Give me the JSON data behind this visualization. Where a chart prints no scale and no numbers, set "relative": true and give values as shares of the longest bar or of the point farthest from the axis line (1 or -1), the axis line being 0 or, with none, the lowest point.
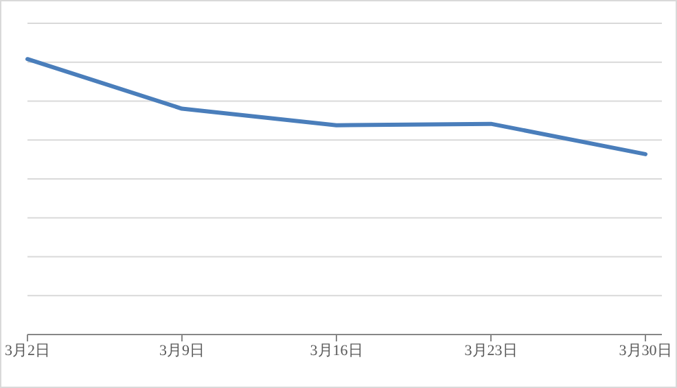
{
  "chart_data": {
    "type": "line",
    "categories": [
      "3月2日",
      "3月9日",
      "3月16日",
      "3月23日",
      "3月30日"
    ],
    "relative": true,
    "series": [
      {
        "color": "#4a7ebb",
        "values": [
          1,
          0.82,
          0.76,
          0.765,
          0.655
        ]
      }
    ],
    "grid": "y",
    "marker": "none",
    "line_style": "solid"
  }
}
